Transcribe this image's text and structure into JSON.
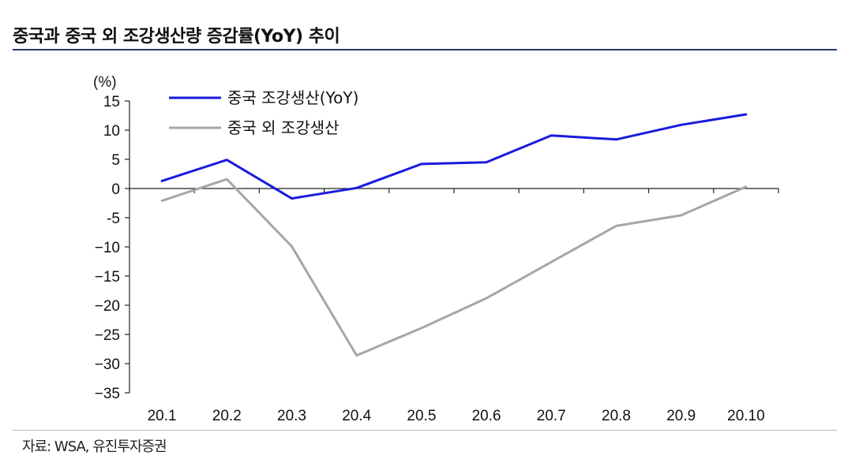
{
  "header": {
    "title": "중국과 중국 외 조강생산량 증감률(YoY) 추이"
  },
  "footer": {
    "source": "자료: WSA, 유진투자증권"
  },
  "chart_data": {
    "type": "line",
    "title": "중국과 중국 외 조강생산량 증감률(YoY) 추이",
    "ylabel": "(%)",
    "xlabel": "",
    "categories": [
      "20.1",
      "20.2",
      "20.3",
      "20.4",
      "20.5",
      "20.6",
      "20.7",
      "20.8",
      "20.9",
      "20.10"
    ],
    "ylim": [
      -35,
      15
    ],
    "yticks": [
      15,
      10,
      5,
      0,
      -5,
      -10,
      -15,
      -20,
      -25,
      -30,
      -35
    ],
    "ytick_labels": [
      "15",
      "10",
      "5",
      "0",
      "-5",
      "−10",
      "−15",
      "−20",
      "−25",
      "−30",
      "−35"
    ],
    "grid": false,
    "legend": "top-left",
    "series": [
      {
        "name": "중국 조강생산(YoY)",
        "color": "#1a1adf",
        "values": [
          1.3,
          4.9,
          -1.7,
          0.1,
          4.2,
          4.5,
          9.1,
          8.4,
          10.9,
          12.7
        ]
      },
      {
        "name": "중국 외 조강생산",
        "color": "#a6a6a6",
        "values": [
          -2.1,
          1.6,
          -9.9,
          -28.6,
          -23.9,
          -18.8,
          -12.6,
          -6.4,
          -4.6,
          0.3
        ]
      }
    ]
  }
}
